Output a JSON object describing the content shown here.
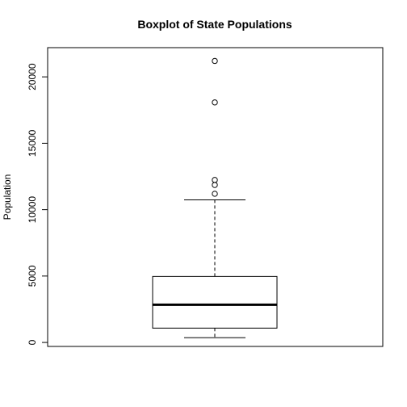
{
  "chart_data": {
    "type": "boxplot",
    "title": "Boxplot of State Populations",
    "xlabel": "",
    "ylabel": "Population",
    "ylim": [
      -300,
      22200
    ],
    "yticks": [
      0,
      5000,
      10000,
      15000,
      20000
    ],
    "ytick_labels": [
      "0",
      "5000",
      "10000",
      "15000",
      "20000"
    ],
    "grid": false,
    "box": {
      "whisker_low": 365,
      "q1": 1080,
      "median": 2838,
      "q3": 4968,
      "whisker_high": 10735
    },
    "outliers": [
      11197,
      11860,
      12237,
      18076,
      21198
    ]
  }
}
